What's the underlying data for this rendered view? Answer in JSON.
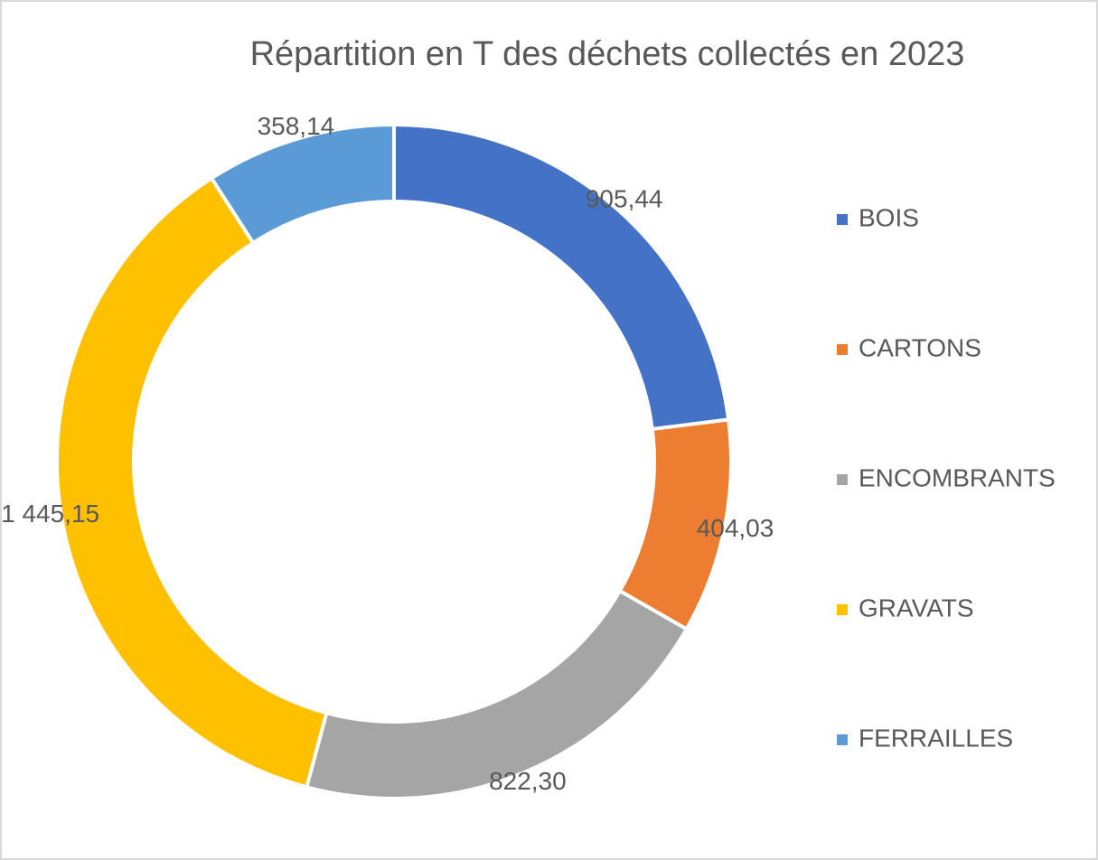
{
  "chart_data": {
    "type": "donut",
    "title": "Répartition en T des déchets collectés en 2023",
    "categories": [
      "BOIS",
      "CARTONS",
      "ENCOMBRANTS",
      "GRAVATS",
      "FERRAILLES"
    ],
    "values": [
      905.44,
      404.03,
      822.3,
      1445.15,
      358.14
    ],
    "value_labels": [
      "905,44",
      "404,03",
      "822,30",
      "1 445,15",
      "358,14"
    ],
    "colors": [
      "#4472c4",
      "#ed7d31",
      "#a5a5a5",
      "#ffc000",
      "#5b9bd5"
    ],
    "legend": "right"
  }
}
